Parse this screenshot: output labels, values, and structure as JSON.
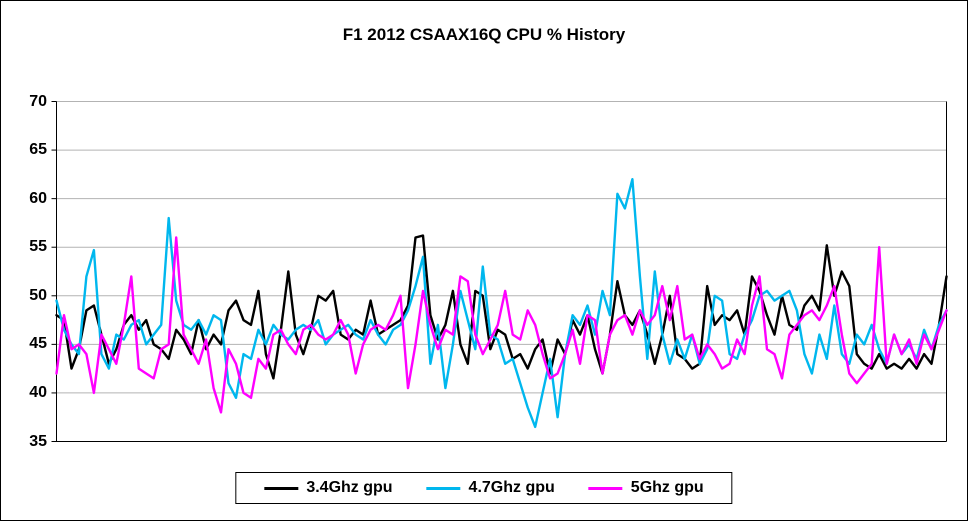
{
  "chart_data": {
    "type": "line",
    "title": "F1 2012 CSAAX16Q CPU % History",
    "xlabel": "",
    "ylabel": "",
    "ylim": [
      35,
      70
    ],
    "yticks": [
      70,
      65,
      60,
      55,
      50,
      45,
      40,
      35
    ],
    "x_tick_labels": [],
    "grid": "horizontal",
    "grid_color": "#b3b3b3",
    "axis_color": "#000000",
    "legend_position": "bottom-center-boxed",
    "series": [
      {
        "name": "3.4Ghz gpu",
        "color": "#000000",
        "values": [
          48,
          47.5,
          42.5,
          44.5,
          48.5,
          49,
          46,
          43,
          44.5,
          47,
          48,
          46.5,
          47.5,
          45,
          44.5,
          43.5,
          46.5,
          45.5,
          44,
          47.5,
          44.5,
          46,
          45,
          48.5,
          49.5,
          47.5,
          47,
          50.5,
          44,
          41.5,
          46.5,
          52.5,
          46,
          44,
          46.5,
          50,
          49.5,
          50.5,
          46,
          45.5,
          46.5,
          46,
          49.5,
          46,
          46.5,
          47,
          47.5,
          49,
          56,
          56.2,
          48,
          45.5,
          47,
          50.5,
          45,
          43,
          50.5,
          50,
          44.5,
          46.5,
          46,
          43.5,
          44,
          42.5,
          44.5,
          45.5,
          42,
          45.5,
          44,
          47.5,
          46,
          48,
          44.5,
          42,
          46,
          51.5,
          48,
          47,
          48.5,
          46,
          43,
          46,
          50,
          44,
          43.5,
          42.5,
          43,
          51,
          47,
          48,
          47.5,
          48.5,
          46,
          52,
          50.5,
          48,
          46,
          50,
          47,
          46.5,
          49,
          50,
          48.5,
          55.2,
          50,
          52.5,
          51,
          44,
          43,
          42.5,
          44,
          42.5,
          43,
          42.5,
          43.5,
          42.5,
          44,
          43,
          47,
          52
        ]
      },
      {
        "name": "4.7Ghz gpu",
        "color": "#00b7ee",
        "values": [
          49.5,
          46.5,
          45,
          44,
          52,
          54.7,
          44,
          42.5,
          46,
          45.5,
          47,
          47.5,
          45,
          46,
          47,
          58,
          49.5,
          47,
          46.5,
          47.5,
          46,
          48,
          47.5,
          41,
          39.5,
          44,
          43.5,
          46.5,
          45,
          47,
          46,
          45.5,
          46.5,
          47,
          46.5,
          47.5,
          45,
          46,
          46.5,
          47,
          46,
          45.5,
          47.5,
          46,
          45,
          46.5,
          47,
          48.5,
          51,
          54,
          43,
          47,
          40.5,
          45,
          50.5,
          47.5,
          44.5,
          53,
          46,
          45.5,
          43,
          43.5,
          41,
          38.5,
          36.5,
          40,
          43.5,
          37.5,
          44,
          48,
          47,
          49,
          46,
          50.5,
          48,
          60.5,
          59,
          62,
          52,
          43.5,
          52.5,
          46,
          43,
          45.5,
          43.5,
          46,
          43,
          44.5,
          50,
          49.5,
          44,
          43.5,
          46,
          47.5,
          50,
          50.5,
          49.5,
          50,
          50.5,
          48.5,
          44,
          42,
          46,
          43.5,
          49,
          44,
          43,
          46,
          45,
          47,
          44.5,
          43,
          46,
          44,
          45,
          43.5,
          46.5,
          44.5,
          47,
          48.5
        ]
      },
      {
        "name": "5Ghz gpu",
        "color": "#ff00ff",
        "values": [
          42,
          48,
          44.5,
          45,
          44,
          40,
          46,
          44.5,
          43,
          47,
          52,
          42.5,
          42,
          41.5,
          44.5,
          45,
          56,
          46,
          44.5,
          43,
          45.5,
          40.5,
          38,
          44.5,
          43,
          40,
          39.5,
          43.5,
          42.5,
          46,
          46.5,
          45,
          44,
          46.5,
          47,
          46,
          45.5,
          46,
          47.5,
          46,
          42,
          45,
          46.5,
          47,
          46.5,
          48,
          50,
          40.5,
          45,
          50.5,
          47,
          44.5,
          46.5,
          46,
          52,
          51.5,
          46,
          44,
          45.5,
          47,
          50.5,
          46,
          45.5,
          48.5,
          47,
          44,
          41.5,
          42,
          44,
          46.5,
          43,
          48,
          47.5,
          42,
          46,
          47.5,
          48,
          46,
          48.5,
          47,
          48,
          51,
          47.5,
          51,
          45.5,
          46,
          43.5,
          45,
          44,
          42.5,
          43,
          45.5,
          44,
          49,
          52,
          44.5,
          44,
          41.5,
          46,
          47,
          48,
          48.5,
          47.5,
          49,
          51,
          46,
          42,
          41,
          42,
          43,
          55,
          43,
          46,
          44,
          45.5,
          43,
          46,
          44.5,
          46.5,
          48.5
        ]
      }
    ]
  }
}
